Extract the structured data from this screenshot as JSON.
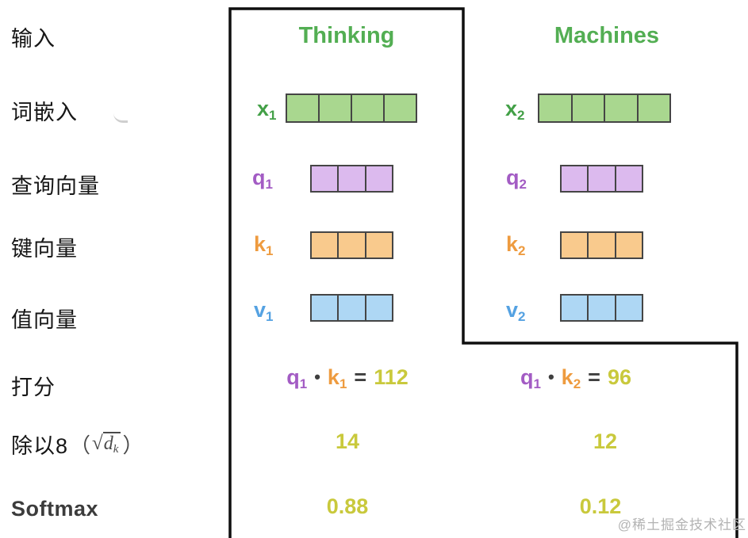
{
  "left_labels": [
    {
      "id": "input",
      "text": "输入"
    },
    {
      "id": "embedding",
      "text": "词嵌入"
    },
    {
      "id": "query",
      "text": "查询向量"
    },
    {
      "id": "key",
      "text": "键向量"
    },
    {
      "id": "value",
      "text": "值向量"
    },
    {
      "id": "score",
      "text": "打分"
    },
    {
      "id": "divide",
      "text": "除以8"
    },
    {
      "id": "softmax",
      "text": "Softmax"
    }
  ],
  "divide_formula": {
    "paren_open": "（",
    "sqrt_sign": "√",
    "dk_base": "d",
    "dk_sub": "k",
    "paren_close": "）"
  },
  "columns": {
    "thinking": {
      "title": "Thinking",
      "vectors": {
        "x": {
          "label": "x",
          "sub": "1",
          "cells": 4
        },
        "q": {
          "label": "q",
          "sub": "1",
          "cells": 3
        },
        "k": {
          "label": "k",
          "sub": "1",
          "cells": 3
        },
        "v": {
          "label": "v",
          "sub": "1",
          "cells": 3
        }
      },
      "score": {
        "lhs": "q",
        "lhs_sub": "1",
        "dot": "•",
        "rhs": "k",
        "rhs_sub": "1",
        "equals": "=",
        "value": "112"
      },
      "divided": "14",
      "softmax": "0.88"
    },
    "machines": {
      "title": "Machines",
      "vectors": {
        "x": {
          "label": "x",
          "sub": "2",
          "cells": 4
        },
        "q": {
          "label": "q",
          "sub": "2",
          "cells": 3
        },
        "k": {
          "label": "k",
          "sub": "2",
          "cells": 3
        },
        "v": {
          "label": "v",
          "sub": "2",
          "cells": 3
        }
      },
      "score": {
        "lhs": "q",
        "lhs_sub": "1",
        "dot": "•",
        "rhs": "k",
        "rhs_sub": "2",
        "equals": "=",
        "value": "96"
      },
      "divided": "12",
      "softmax": "0.12"
    }
  },
  "watermark": {
    "text": "@稀土掘金技术社区"
  },
  "colors": {
    "word_green": "#53ae53",
    "embedding_fill": "#a9d78f",
    "query_purple": "#a35cc4",
    "query_fill": "#dcbaee",
    "key_orange": "#ee9b3f",
    "key_fill": "#f9ca8d",
    "value_blue": "#55a2e2",
    "value_fill": "#aed7f4",
    "score_yellow": "#c9c93c",
    "operator_dark": "#3f3f3f",
    "outline_black": "#0f0f0f"
  }
}
